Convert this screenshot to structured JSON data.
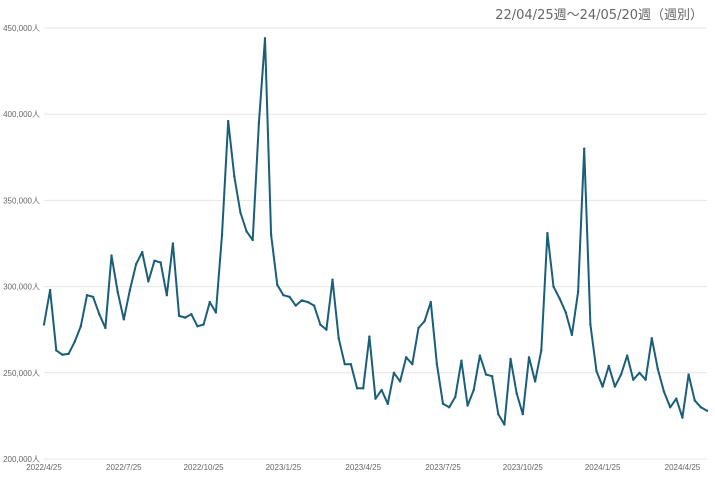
{
  "chart_data": {
    "type": "line",
    "title": "22/04/25週～24/05/20週（週別）",
    "xlabel": "",
    "ylabel": "",
    "ylim": [
      200000,
      450000
    ],
    "y_ticks": [
      {
        "value": 200000,
        "label": "200,000人"
      },
      {
        "value": 250000,
        "label": "250,000人"
      },
      {
        "value": 300000,
        "label": "300,000人"
      },
      {
        "value": 350000,
        "label": "350,000人"
      },
      {
        "value": 400000,
        "label": "400,000人"
      },
      {
        "value": 450000,
        "label": "450,000人"
      }
    ],
    "x_ticks": [
      {
        "index": 0,
        "label": "2022/4/25"
      },
      {
        "index": 13,
        "label": "2022/7/25"
      },
      {
        "index": 26,
        "label": "2022/10/25"
      },
      {
        "index": 39,
        "label": "2023/1/25"
      },
      {
        "index": 52,
        "label": "2023/4/25"
      },
      {
        "index": 65,
        "label": "2023/7/25"
      },
      {
        "index": 78,
        "label": "2023/10/25"
      },
      {
        "index": 91,
        "label": "2024/1/25"
      },
      {
        "index": 104,
        "label": "2024/4/25"
      }
    ],
    "grid": true,
    "color": "#1a5e7a",
    "series": [
      {
        "name": "",
        "values": [
          278000,
          298000,
          263000,
          260500,
          261000,
          268000,
          277000,
          295000,
          294000,
          284000,
          276000,
          318000,
          297000,
          281000,
          298000,
          313000,
          320000,
          303000,
          315000,
          314000,
          295000,
          325000,
          283000,
          282000,
          284000,
          277000,
          278000,
          291000,
          285000,
          330000,
          396000,
          364000,
          343000,
          332000,
          327000,
          395000,
          444000,
          330000,
          301000,
          295000,
          294000,
          289000,
          292000,
          291000,
          289000,
          278000,
          275000,
          304000,
          270000,
          255000,
          255000,
          241000,
          241000,
          271000,
          235000,
          240000,
          232000,
          250000,
          245000,
          259000,
          255000,
          276000,
          280000,
          291000,
          255000,
          232000,
          230000,
          236000,
          257000,
          231000,
          240000,
          260000,
          249000,
          248000,
          226000,
          220000,
          258000,
          238000,
          226000,
          259000,
          245000,
          263000,
          331000,
          300000,
          293000,
          285000,
          272000,
          297000,
          380000,
          278000,
          251000,
          242000,
          254000,
          242000,
          249000,
          260000,
          246000,
          250000,
          246000,
          270000,
          252000,
          239000,
          230000,
          235000,
          224000,
          249000,
          234000,
          230000,
          228000
        ]
      }
    ]
  }
}
